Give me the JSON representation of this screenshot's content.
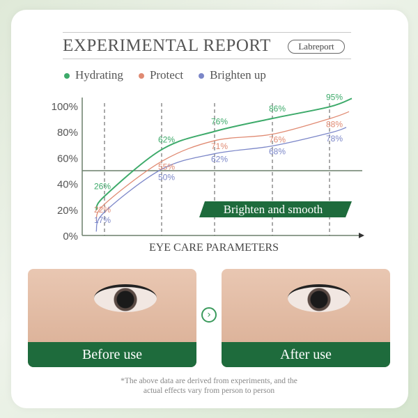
{
  "header": {
    "title": "EXPERIMENTAL REPORT",
    "badge": "Labreport"
  },
  "colors": {
    "Hydrating": "#3daa6a",
    "Protect": "#e08a72",
    "Brighten up": "#7b86c8",
    "accent": "#1e6b3c"
  },
  "chart_data": {
    "type": "line",
    "xlabel": "EYE CARE PARAMETERS",
    "ylabel": "",
    "ylim": [
      0,
      100
    ],
    "yticks": [
      "0%",
      "20%",
      "40%",
      "60%",
      "80%",
      "100%"
    ],
    "reference_line": 50,
    "banner": "Brighten and smooth",
    "legend_position": "top",
    "series": [
      {
        "name": "Hydrating",
        "values": [
          26,
          62,
          76,
          86,
          95
        ],
        "labels": [
          "26%",
          "62%",
          "76%",
          "86%",
          "95%"
        ]
      },
      {
        "name": "Protect",
        "values": [
          22,
          55,
          71,
          76,
          88
        ],
        "labels": [
          "22%",
          "55%",
          "71%",
          "76%",
          "88%"
        ]
      },
      {
        "name": "Brighten up",
        "values": [
          17,
          50,
          62,
          68,
          78
        ],
        "labels": [
          "17%",
          "50%",
          "62%",
          "68%",
          "78%"
        ]
      }
    ]
  },
  "photos": {
    "before": "Before use",
    "after": "After use"
  },
  "footnote": [
    "*The above data are derived from experiments, and the",
    "actual effects vary from person to person"
  ]
}
